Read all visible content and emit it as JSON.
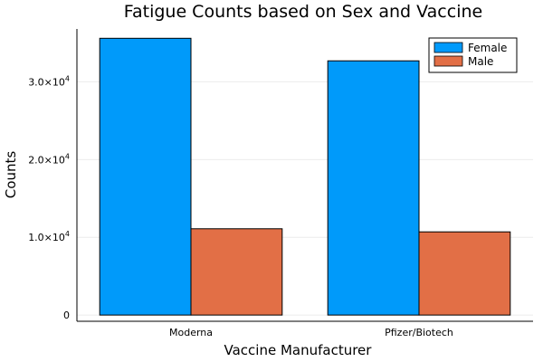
{
  "chart_data": {
    "type": "bar",
    "title": "Fatigue Counts based on Sex and Vaccine",
    "xlabel": "Vaccine Manufacturer",
    "ylabel": "Counts",
    "categories": [
      "Moderna",
      "Pfizer/Biotech"
    ],
    "series": [
      {
        "name": "Female",
        "values": [
          35600,
          32700
        ],
        "color": "#009AFA"
      },
      {
        "name": "Male",
        "values": [
          11100,
          10700
        ],
        "color": "#E26F46"
      }
    ],
    "ylim": [
      -800,
      36800
    ],
    "yticks": [
      {
        "value": 0,
        "mantissa": "0",
        "exp": ""
      },
      {
        "value": 10000,
        "mantissa": "1.0×10",
        "exp": "4"
      },
      {
        "value": 20000,
        "mantissa": "2.0×10",
        "exp": "4"
      },
      {
        "value": 30000,
        "mantissa": "3.0×10",
        "exp": "4"
      }
    ],
    "grid": true,
    "legend_position": "top-right"
  }
}
